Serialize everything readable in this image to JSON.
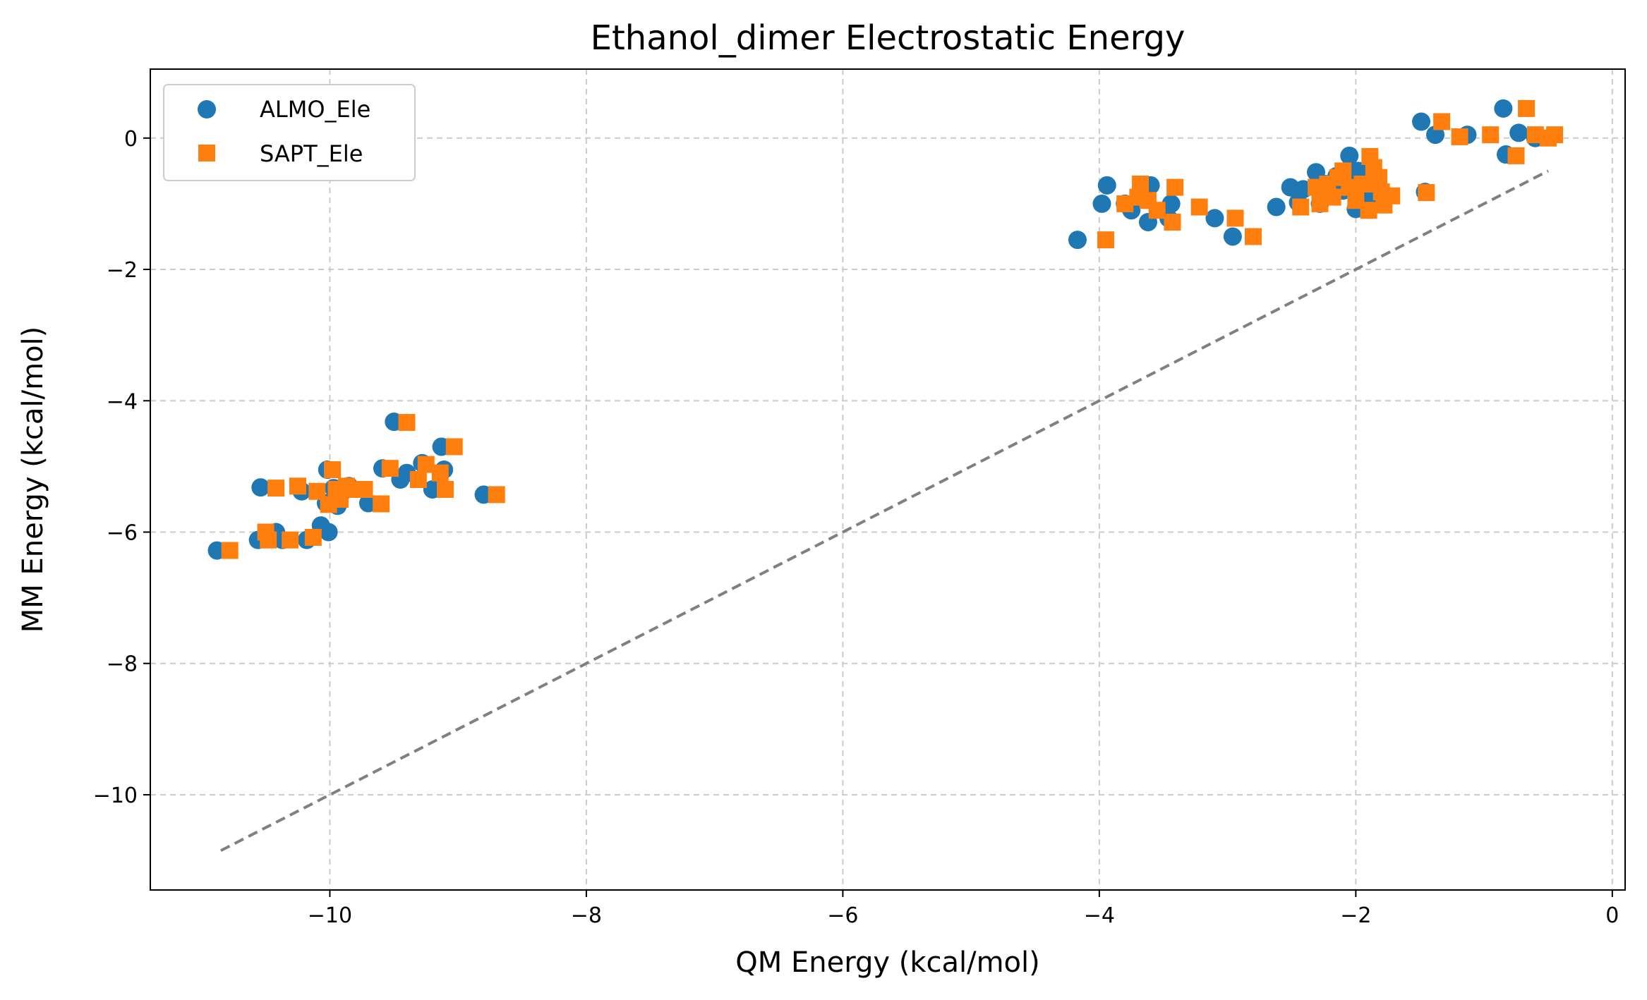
{
  "chart_data": {
    "type": "scatter",
    "title": "Ethanol_dimer Electrostatic Energy",
    "xlabel": "QM Energy (kcal/mol)",
    "ylabel": "MM Energy (kcal/mol)",
    "xlim": [
      -11.4,
      0.1
    ],
    "ylim": [
      -11.45,
      1.05
    ],
    "xticks": [
      -10,
      -8,
      -6,
      -4,
      -2,
      0
    ],
    "yticks": [
      -10,
      -8,
      -6,
      -4,
      -2,
      0
    ],
    "grid": true,
    "legend_position": "upper left",
    "reference_line": {
      "x": [
        -10.85,
        -0.5
      ],
      "y": [
        -10.85,
        -0.5
      ],
      "color": "#808080",
      "style": "dashed"
    },
    "series": [
      {
        "name": "ALMO_Ele",
        "marker": "circle",
        "color": "#1f77b4",
        "x": [
          -10.88,
          -10.56,
          -10.54,
          -10.42,
          -10.37,
          -10.22,
          -10.18,
          -10.07,
          -10.03,
          -10.02,
          -10.01,
          -9.97,
          -9.94,
          -9.89,
          -9.85,
          -9.7,
          -9.59,
          -9.5,
          -9.45,
          -9.4,
          -9.28,
          -9.2,
          -9.13,
          -9.11,
          -8.8,
          -4.17,
          -3.98,
          -3.94,
          -3.8,
          -3.75,
          -3.62,
          -3.6,
          -3.46,
          -3.44,
          -3.1,
          -2.96,
          -2.62,
          -2.51,
          -2.45,
          -2.41,
          -2.31,
          -2.28,
          -2.24,
          -2.2,
          -2.15,
          -2.1,
          -2.05,
          -2.02,
          -2.0,
          -1.98,
          -1.93,
          -1.91,
          -1.86,
          -1.49,
          -1.46,
          -1.38,
          -1.13,
          -0.85,
          -0.83,
          -0.73,
          -0.6
        ],
        "y": [
          -6.28,
          -6.12,
          -5.32,
          -6.0,
          -6.12,
          -5.38,
          -6.12,
          -5.9,
          -5.56,
          -5.05,
          -6.0,
          -5.33,
          -5.6,
          -5.37,
          -5.3,
          -5.56,
          -5.03,
          -4.32,
          -5.2,
          -5.1,
          -4.95,
          -5.35,
          -4.7,
          -5.05,
          -5.43,
          -1.55,
          -1.0,
          -0.72,
          -1.0,
          -1.1,
          -1.28,
          -0.72,
          -1.22,
          -1.0,
          -1.22,
          -1.5,
          -1.05,
          -0.75,
          -0.98,
          -0.78,
          -0.52,
          -1.0,
          -0.7,
          -0.85,
          -0.58,
          -0.8,
          -0.27,
          -0.6,
          -1.08,
          -0.5,
          -0.72,
          -0.9,
          -0.98,
          0.25,
          -0.82,
          0.05,
          0.05,
          0.45,
          -0.25,
          0.08,
          0.0
        ]
      },
      {
        "name": "SAPT_Ele",
        "marker": "square",
        "color": "#ff7f0e",
        "x": [
          -10.78,
          -10.5,
          -10.48,
          -10.42,
          -10.31,
          -10.25,
          -10.13,
          -10.1,
          -10.01,
          -9.98,
          -9.95,
          -9.92,
          -9.87,
          -9.83,
          -9.73,
          -9.6,
          -9.53,
          -9.4,
          -9.31,
          -9.25,
          -9.14,
          -9.1,
          -9.03,
          -8.7,
          -3.95,
          -3.8,
          -3.7,
          -3.68,
          -3.62,
          -3.55,
          -3.43,
          -3.41,
          -3.22,
          -2.94,
          -2.8,
          -2.43,
          -2.31,
          -2.28,
          -2.26,
          -2.22,
          -2.18,
          -2.14,
          -2.1,
          -2.05,
          -2.0,
          -1.95,
          -1.9,
          -1.89,
          -1.86,
          -1.84,
          -1.82,
          -1.8,
          -1.78,
          -1.72,
          -1.45,
          -1.33,
          -1.19,
          -0.95,
          -0.75,
          -0.67,
          -0.6,
          -0.5,
          -0.45
        ],
        "y": [
          -6.28,
          -6.0,
          -6.12,
          -5.33,
          -6.12,
          -5.3,
          -6.08,
          -5.38,
          -5.58,
          -5.05,
          -5.35,
          -5.5,
          -5.3,
          -5.35,
          -5.35,
          -5.57,
          -5.03,
          -4.33,
          -5.2,
          -4.97,
          -5.1,
          -5.35,
          -4.7,
          -5.43,
          -1.55,
          -1.0,
          -0.9,
          -0.7,
          -0.95,
          -1.1,
          -1.28,
          -0.75,
          -1.05,
          -1.22,
          -1.5,
          -1.05,
          -0.75,
          -1.0,
          -0.8,
          -0.7,
          -0.9,
          -0.6,
          -0.5,
          -0.75,
          -0.95,
          -0.7,
          -1.1,
          -0.28,
          -0.45,
          -0.7,
          -0.6,
          -0.82,
          -1.02,
          -0.88,
          -0.83,
          0.25,
          0.02,
          0.05,
          -0.27,
          0.45,
          0.05,
          0.0,
          0.05
        ]
      }
    ]
  }
}
